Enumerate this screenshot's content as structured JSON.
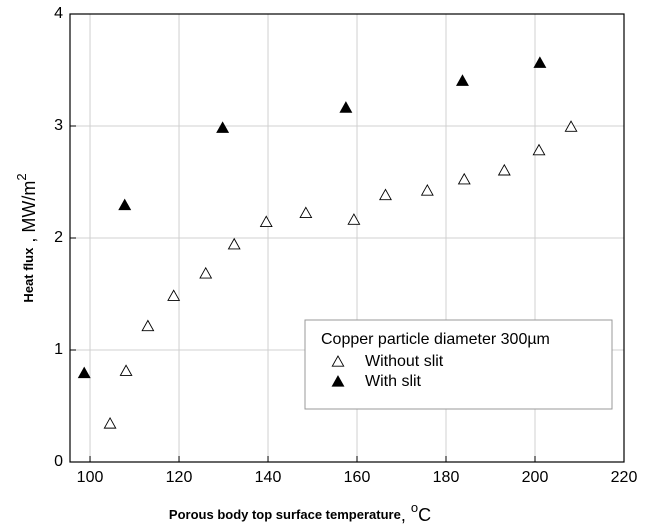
{
  "chart_data": {
    "type": "scatter",
    "x_label": "Porous body top surface temperature",
    "x_unit": ", ",
    "x_unit_sup": "o",
    "x_unit_tail": "C",
    "y_label": "Heat flux",
    "y_unit": " , MW/m",
    "y_unit_sup": "2",
    "xlim": [
      95.5,
      220
    ],
    "xticks": [
      100,
      120,
      140,
      160,
      180,
      200,
      220
    ],
    "ylim": [
      0,
      4
    ],
    "yticks": [
      0,
      1,
      2,
      3,
      4
    ],
    "grid": true,
    "legend_position": "lower right",
    "legend_title": "Copper particle diameter 300µm",
    "series": [
      {
        "name": "Without slit",
        "color": "#000000",
        "marker": "open-triangle",
        "x": [
          104.5,
          108.1,
          113.0,
          118.8,
          126.0,
          132.4,
          139.6,
          148.5,
          159.3,
          166.4,
          175.8,
          184.1,
          193.1,
          200.9,
          208.1
        ],
        "values": [
          0.34,
          0.81,
          1.21,
          1.48,
          1.68,
          1.94,
          2.14,
          2.22,
          2.16,
          2.38,
          2.42,
          2.52,
          2.6,
          2.78,
          2.99
        ]
      },
      {
        "name": "With slit",
        "color": "#000000",
        "marker": "filled-triangle",
        "x": [
          98.7,
          107.8,
          129.8,
          157.5,
          183.7,
          201.1
        ],
        "values": [
          0.79,
          2.29,
          2.98,
          3.16,
          3.4,
          3.56
        ]
      }
    ]
  }
}
